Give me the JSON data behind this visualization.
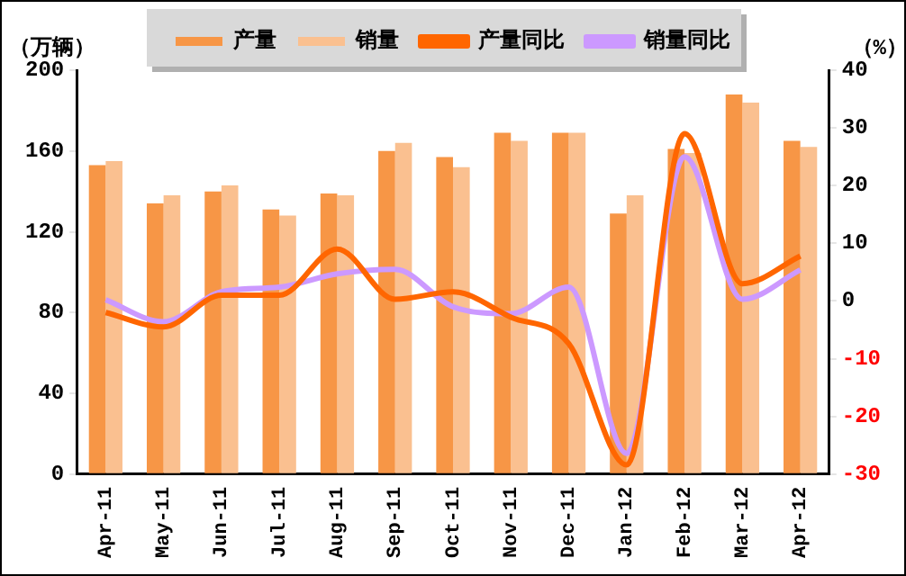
{
  "chart_data": {
    "type": "bar",
    "ylabel": "（万辆）",
    "y2label": "（%）",
    "categories": [
      "Apr-11",
      "May-11",
      "Jun-11",
      "Jul-11",
      "Aug-11",
      "Sep-11",
      "Oct-11",
      "Nov-11",
      "Dec-11",
      "Jan-12",
      "Feb-12",
      "Mar-12",
      "Apr-12"
    ],
    "series": [
      {
        "name": "产量",
        "color": "#f79646",
        "values": [
          153,
          134,
          140,
          131,
          139,
          160,
          157,
          169,
          169,
          129,
          161,
          188,
          165
        ]
      },
      {
        "name": "销量",
        "color": "#fac090",
        "values": [
          155,
          138,
          143,
          128,
          138,
          164,
          152,
          165,
          169,
          138,
          159,
          184,
          162
        ]
      },
      {
        "name": "产量同比",
        "type": "line",
        "axis": "y2",
        "color": "#ff6600",
        "values": [
          -2,
          -4.5,
          1,
          1,
          9,
          0.3,
          1.6,
          -2.8,
          -7.4,
          -28.4,
          29,
          3,
          7.8
        ]
      },
      {
        "name": "销量同比",
        "type": "line",
        "axis": "y2",
        "color": "#cc99ff",
        "values": [
          0.2,
          -3.6,
          1.6,
          2.4,
          4.7,
          5.5,
          -1,
          -2.2,
          2.4,
          -26.4,
          25,
          0.3,
          5.4
        ]
      }
    ],
    "ylim": [
      0,
      200
    ],
    "yticks": [
      0,
      40,
      80,
      120,
      160,
      200
    ],
    "y2lim": [
      -30,
      40
    ],
    "y2ticks": [
      -30,
      -20,
      -10,
      0,
      10,
      20,
      30,
      40
    ],
    "legend": "top",
    "grid": false,
    "marker": "none"
  }
}
